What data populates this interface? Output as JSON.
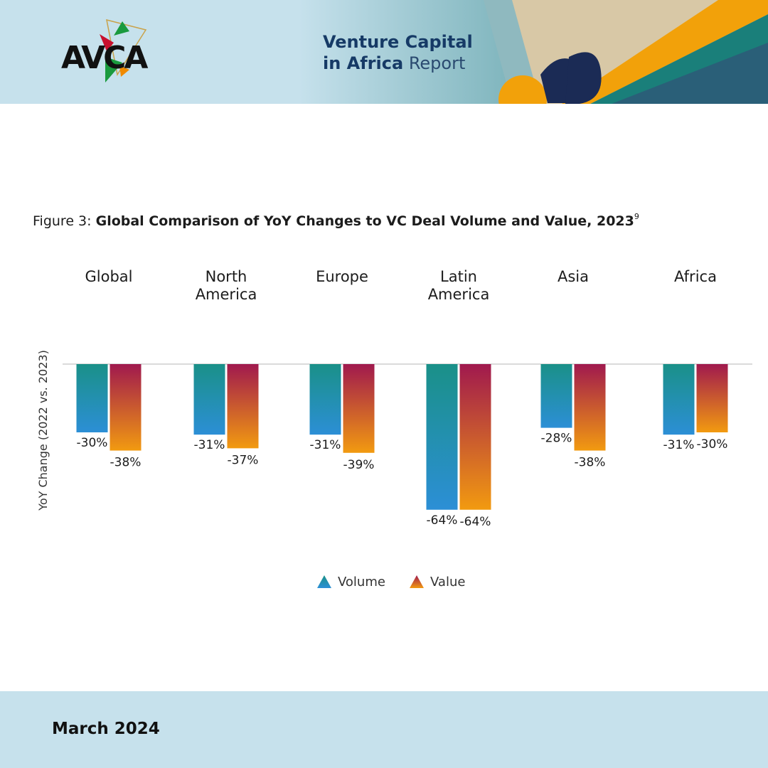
{
  "header": {
    "logo_text": "AVCA",
    "title_line1": "Venture Capital",
    "title_line2_bold": "in Africa",
    "title_line2_regular": "Report",
    "colors": {
      "band": "#c6e1ec",
      "navy": "#163a66",
      "teal": "#1a8c88",
      "orange": "#f2a10a"
    }
  },
  "figure": {
    "prefix": "Figure 3: ",
    "title": "Global Comparison of YoY Changes to VC Deal Volume and Value, 2023",
    "footnote": "9"
  },
  "chart_data": {
    "type": "bar",
    "categories": [
      "Global",
      "North America",
      "Europe",
      "Latin America",
      "Asia",
      "Africa"
    ],
    "category_lines": [
      [
        "Global"
      ],
      [
        "North",
        "America"
      ],
      [
        "Europe"
      ],
      [
        "Latin",
        "America"
      ],
      [
        "Asia"
      ],
      [
        "Africa"
      ]
    ],
    "ylabel": "YoY Change (2022 vs. 2023)",
    "ylim": [
      -70,
      0
    ],
    "series": [
      {
        "name": "Volume",
        "values": [
          -30,
          -31,
          -31,
          -64,
          -28,
          -31
        ],
        "labels": [
          "-30%",
          "-31%",
          "-31%",
          "-64%",
          "-28%",
          "-31%"
        ],
        "color_top": "#1a9088",
        "color_bottom": "#2c8fd6"
      },
      {
        "name": "Value",
        "values": [
          -38,
          -37,
          -39,
          -64,
          -38,
          -30
        ],
        "labels": [
          "-38%",
          "-37%",
          "-39%",
          "-64%",
          "-38%",
          "-30%"
        ],
        "color_top": "#a0194e",
        "color_bottom": "#f29a10"
      }
    ],
    "legend_position": "bottom-center",
    "grid": false
  },
  "footer": {
    "date": "March 2024"
  }
}
